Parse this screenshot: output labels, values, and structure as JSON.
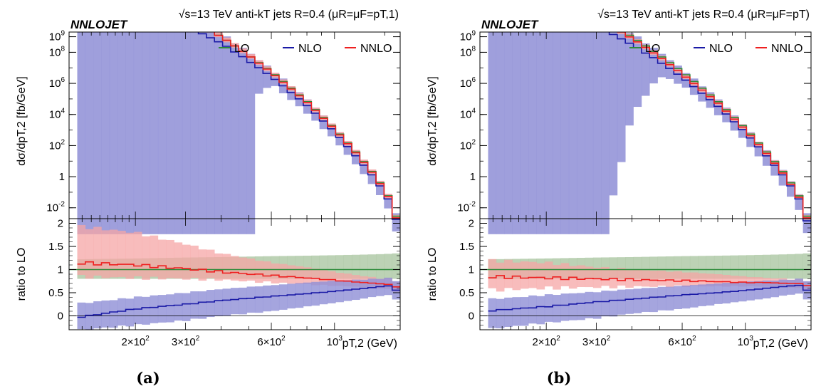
{
  "chart_data": [
    {
      "type": "line",
      "brand": "NNLOJET",
      "process_label": "√s=13 TeV anti-kT jets R=0.4",
      "scale_label": "(μR=μF=pT,1)",
      "ylabel_top": "dσ/dpT,2 [fb/GeV]",
      "ylabel_bottom": "ratio to LO",
      "xlabel": "pT,2 (GeV)",
      "xscale": "log",
      "xlim": [
        117,
        1700
      ],
      "top_yscale": "log",
      "top_ylim": [
        0.002,
        2000000000
      ],
      "top_yticks": [
        "10^-2",
        "1",
        "10^2",
        "10^4",
        "10^6",
        "10^8",
        "10^9"
      ],
      "bottom_ylim": [
        -0.3,
        2.1
      ],
      "bottom_yticks": [
        "0",
        "0.5",
        "1",
        "1.5",
        "2"
      ],
      "xticks": [
        "2×10^2",
        "3×10^2",
        "6×10^2",
        "10^3"
      ],
      "legend_position": "top-right",
      "legend": [
        "LO",
        "NLO",
        "NNLO"
      ],
      "colors": {
        "LO": "#2e8b3a",
        "NLO": "#1a1aa6",
        "NNLO": "#ee2020"
      },
      "band_colors": {
        "LO": "#9fbf96",
        "NLO": "#8e8ed6",
        "NNLO": "#f5a5a5"
      },
      "curve_breakpoints": {
        "pt": [
          120,
          200,
          300,
          400,
          500,
          600,
          800,
          1000,
          1200,
          1400,
          1550,
          1650
        ],
        "LO": [
          13.8,
          12.1,
          10.3,
          9.0,
          7.8,
          6.75,
          4.85,
          3.1,
          1.5,
          0.0,
          -1.3,
          -2.6
        ],
        "NLO": [
          11.0,
          10.9,
          9.7,
          8.6,
          7.45,
          6.45,
          4.6,
          2.9,
          1.25,
          -0.2,
          -1.5,
          -2.8
        ],
        "NNLO": [
          13.8,
          12.2,
          10.3,
          9.0,
          7.8,
          6.7,
          4.8,
          3.05,
          1.45,
          -0.05,
          -1.35,
          -2.7
        ]
      },
      "nlo_band_top": [
        14.0,
        12.3,
        10.5,
        9.2,
        8.0,
        6.9,
        5.0,
        3.2,
        1.6,
        0.1,
        -1.2,
        -2.4
      ],
      "nlo_band_bottom": [
        -6,
        -6,
        -6,
        -6,
        4.7,
        6.0,
        4.1,
        2.4,
        0.7,
        -0.8,
        -2.1,
        -3.6
      ],
      "nlo_band_cutoff_pt": 520,
      "ratio": {
        "pt": [
          120,
          200,
          300,
          400,
          600,
          800,
          1000,
          1200,
          1400,
          1550,
          1650
        ],
        "NLO": [
          -0.05,
          0.15,
          0.25,
          0.33,
          0.42,
          0.48,
          0.53,
          0.58,
          0.62,
          0.65,
          0.55
        ],
        "NLO_band_low": [
          -0.32,
          -0.2,
          -0.1,
          0.0,
          0.1,
          0.2,
          0.28,
          0.35,
          0.42,
          0.45,
          0.35
        ],
        "NLO_band_high": [
          0.25,
          0.4,
          0.5,
          0.58,
          0.66,
          0.72,
          0.76,
          0.78,
          0.8,
          0.82,
          0.75
        ],
        "NNLO": [
          1.15,
          1.1,
          1.02,
          0.95,
          0.87,
          0.82,
          0.77,
          0.73,
          0.7,
          0.68,
          0.62
        ],
        "NNLO_band_low": [
          0.85,
          0.82,
          0.8,
          0.78,
          0.72,
          0.68,
          0.65,
          0.63,
          0.6,
          0.58,
          0.52
        ],
        "NNLO_band_high": [
          1.95,
          1.8,
          1.55,
          1.35,
          1.15,
          1.05,
          0.95,
          0.88,
          0.82,
          0.8,
          0.75
        ],
        "LO_band_low": [
          0.8,
          0.8,
          0.8,
          0.8,
          0.8,
          0.8,
          0.8,
          0.8,
          0.8,
          0.8,
          0.8
        ],
        "LO_band_high": [
          1.22,
          1.24,
          1.26,
          1.27,
          1.29,
          1.3,
          1.31,
          1.32,
          1.33,
          1.34,
          1.35
        ]
      }
    },
    {
      "type": "line",
      "brand": "NNLOJET",
      "process_label": "√s=13 TeV anti-kT jets R=0.4",
      "scale_label": "(μR=μF=pT)",
      "ylabel_top": "dσ/dpT,2 [fb/GeV]",
      "ylabel_bottom": "ratio to LO",
      "xlabel": "pT,2 (GeV)",
      "xscale": "log",
      "xlim": [
        117,
        1700
      ],
      "top_yscale": "log",
      "top_ylim": [
        0.002,
        2000000000
      ],
      "top_yticks": [
        "10^-2",
        "1",
        "10^2",
        "10^4",
        "10^6",
        "10^8",
        "10^9"
      ],
      "bottom_ylim": [
        -0.3,
        2.1
      ],
      "bottom_yticks": [
        "0",
        "0.5",
        "1",
        "1.5",
        "2"
      ],
      "xticks": [
        "2×10^2",
        "3×10^2",
        "6×10^2",
        "10^3"
      ],
      "legend_position": "top-right",
      "legend": [
        "LO",
        "NLO",
        "NNLO"
      ],
      "colors": {
        "LO": "#2e8b3a",
        "NLO": "#1a1aa6",
        "NNLO": "#ee2020"
      },
      "band_colors": {
        "LO": "#9fbf96",
        "NLO": "#8e8ed6",
        "NNLO": "#f5a5a5"
      },
      "curve_breakpoints": {
        "pt": [
          120,
          200,
          300,
          400,
          500,
          600,
          800,
          1000,
          1200,
          1400,
          1550,
          1650
        ],
        "LO": [
          13.8,
          12.1,
          10.3,
          9.0,
          7.8,
          6.75,
          4.85,
          3.1,
          1.5,
          0.0,
          -1.3,
          -2.6
        ],
        "NLO": [
          12.8,
          11.3,
          9.7,
          8.5,
          7.4,
          6.4,
          4.55,
          2.85,
          1.25,
          -0.2,
          -1.5,
          -2.9
        ],
        "NNLO": [
          13.6,
          12.0,
          10.2,
          8.9,
          7.7,
          6.6,
          4.75,
          3.0,
          1.4,
          -0.1,
          -1.4,
          -2.7
        ]
      },
      "nlo_band_top": [
        14.0,
        12.3,
        10.5,
        9.2,
        8.0,
        6.9,
        5.0,
        3.2,
        1.6,
        0.1,
        -1.2,
        -2.4
      ],
      "nlo_band_bottom": [
        -6,
        -6,
        -6,
        4.0,
        6.5,
        5.9,
        4.0,
        2.3,
        0.6,
        -0.9,
        -2.2,
        -3.7
      ],
      "nlo_band_cutoff_pt": 330,
      "ratio": {
        "pt": [
          120,
          200,
          300,
          400,
          600,
          800,
          1000,
          1200,
          1400,
          1550,
          1650
        ],
        "NLO": [
          0.1,
          0.2,
          0.3,
          0.36,
          0.45,
          0.5,
          0.55,
          0.6,
          0.64,
          0.66,
          0.55
        ],
        "NLO_band_low": [
          -0.3,
          -0.15,
          -0.05,
          0.05,
          0.15,
          0.25,
          0.32,
          0.38,
          0.45,
          0.48,
          0.35
        ],
        "NLO_band_high": [
          0.35,
          0.45,
          0.52,
          0.58,
          0.65,
          0.7,
          0.74,
          0.76,
          0.78,
          0.8,
          0.75
        ],
        "NNLO": [
          0.85,
          0.82,
          0.8,
          0.78,
          0.76,
          0.74,
          0.72,
          0.72,
          0.7,
          0.7,
          0.65
        ],
        "NNLO_band_low": [
          0.55,
          0.6,
          0.62,
          0.63,
          0.64,
          0.64,
          0.64,
          0.63,
          0.62,
          0.6,
          0.55
        ],
        "NNLO_band_high": [
          1.2,
          1.15,
          1.05,
          1.0,
          0.95,
          0.9,
          0.85,
          0.82,
          0.8,
          0.78,
          0.75
        ],
        "LO_band_low": [
          0.8,
          0.8,
          0.8,
          0.8,
          0.8,
          0.8,
          0.8,
          0.8,
          0.8,
          0.8,
          0.8
        ],
        "LO_band_high": [
          1.22,
          1.24,
          1.26,
          1.27,
          1.29,
          1.3,
          1.31,
          1.32,
          1.33,
          1.34,
          1.35
        ]
      }
    }
  ],
  "subfigure_labels": [
    "(a)",
    "(b)"
  ]
}
